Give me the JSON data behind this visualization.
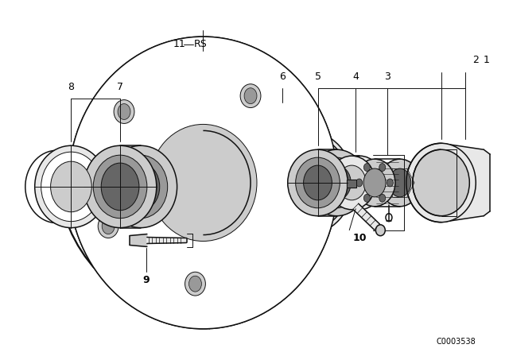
{
  "bg_color": "#ffffff",
  "line_color": "#000000",
  "catalog_code": "C0003538",
  "fig_width": 6.4,
  "fig_height": 4.48,
  "dpi": 100
}
